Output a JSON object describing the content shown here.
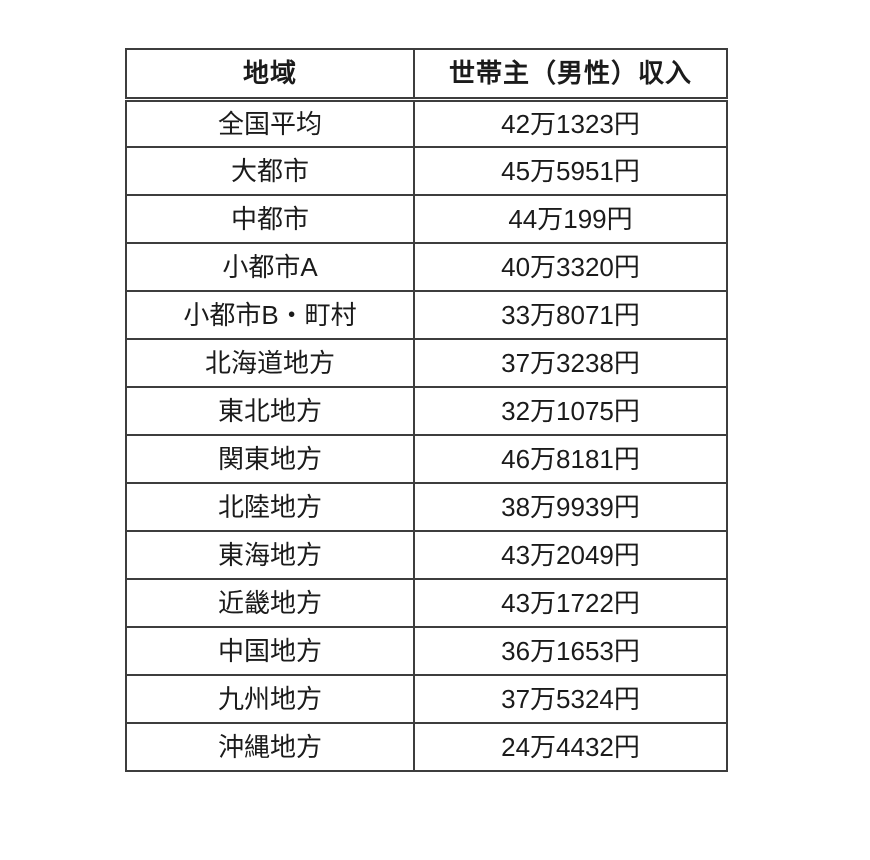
{
  "chart_data": {
    "type": "table",
    "title": "",
    "columns": [
      "地域",
      "世帯主（男性）収入"
    ],
    "rows": [
      [
        "全国平均",
        "42万1323円"
      ],
      [
        "大都市",
        "45万5951円"
      ],
      [
        "中都市",
        "44万199円"
      ],
      [
        "小都市A",
        "40万3320円"
      ],
      [
        "小都市B・町村",
        "33万8071円"
      ],
      [
        "北海道地方",
        "37万3238円"
      ],
      [
        "東北地方",
        "32万1075円"
      ],
      [
        "関東地方",
        "46万8181円"
      ],
      [
        "北陸地方",
        "38万9939円"
      ],
      [
        "東海地方",
        "43万2049円"
      ],
      [
        "近畿地方",
        "43万1722円"
      ],
      [
        "中国地方",
        "36万1653円"
      ],
      [
        "九州地方",
        "37万5324円"
      ],
      [
        "沖縄地方",
        "24万4432円"
      ]
    ],
    "values_yen": [
      421323,
      455951,
      440199,
      403320,
      338071,
      373238,
      321075,
      468181,
      389939,
      432049,
      431722,
      361653,
      375324,
      244432
    ],
    "colors": {
      "border": "#3d3d3d",
      "text": "#1b1b1b",
      "background": "#ffffff"
    }
  }
}
